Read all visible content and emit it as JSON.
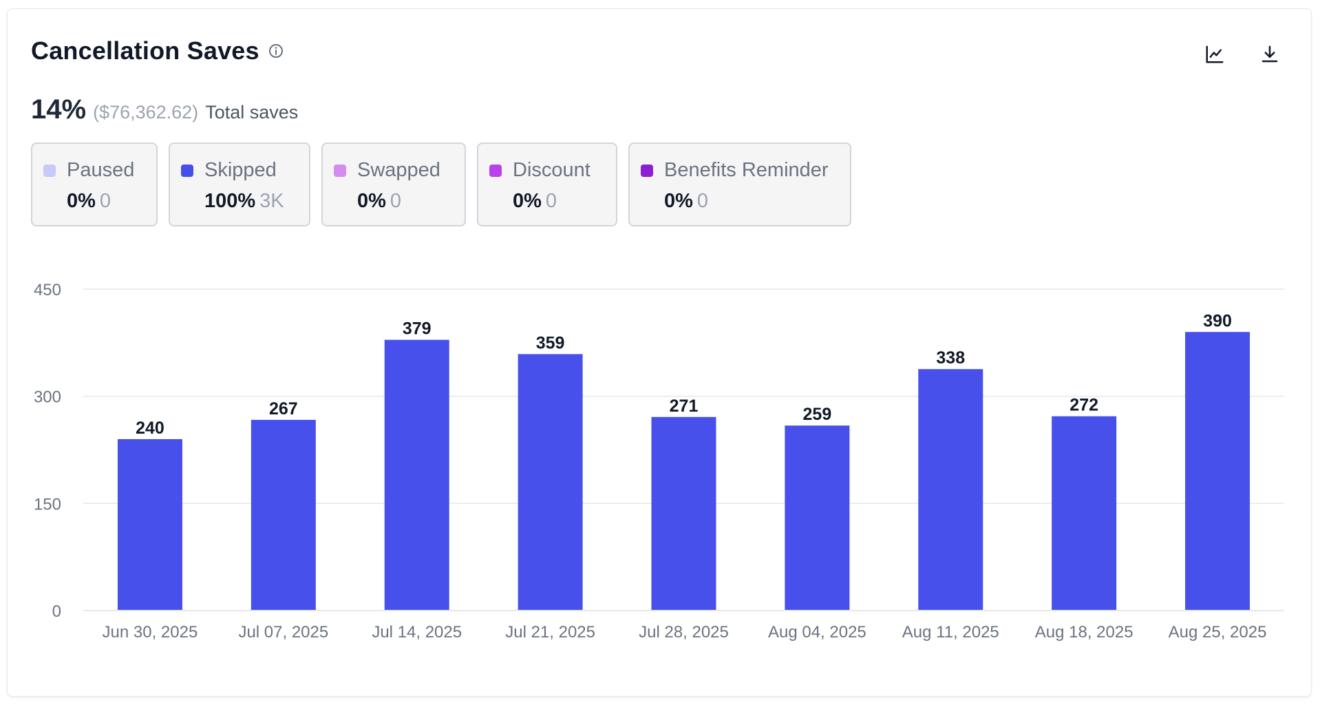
{
  "header": {
    "title": "Cancellation Saves",
    "info_icon": "info-circle-icon",
    "chart_toggle_icon": "line-chart-icon",
    "download_icon": "download-icon"
  },
  "summary": {
    "percent": "14%",
    "amount": "($76,362.62)",
    "label": "Total saves"
  },
  "legend": [
    {
      "name": "Paused",
      "percent": "0%",
      "count": "0",
      "color": "#c7c9f7"
    },
    {
      "name": "Skipped",
      "percent": "100%",
      "count": "3K",
      "color": "#4650e8"
    },
    {
      "name": "Swapped",
      "percent": "0%",
      "count": "0",
      "color": "#d58cf0"
    },
    {
      "name": "Discount",
      "percent": "0%",
      "count": "0",
      "color": "#b941ec"
    },
    {
      "name": "Benefits Reminder",
      "percent": "0%",
      "count": "0",
      "color": "#8b1fd1"
    }
  ],
  "colors": {
    "bar": "#4850ec",
    "grid": "#e5e7eb",
    "axis_text": "#6b7280",
    "value_text": "#111827"
  },
  "chart_data": {
    "type": "bar",
    "categories": [
      "Jun 30, 2025",
      "Jul 07, 2025",
      "Jul 14, 2025",
      "Jul 21, 2025",
      "Jul 28, 2025",
      "Aug 04, 2025",
      "Aug 11, 2025",
      "Aug 18, 2025",
      "Aug 25, 2025"
    ],
    "values": [
      240,
      267,
      379,
      359,
      271,
      259,
      338,
      272,
      390
    ],
    "yticks": [
      "0",
      "150",
      "300",
      "450"
    ],
    "ylim": [
      0,
      450
    ],
    "grid": true
  }
}
